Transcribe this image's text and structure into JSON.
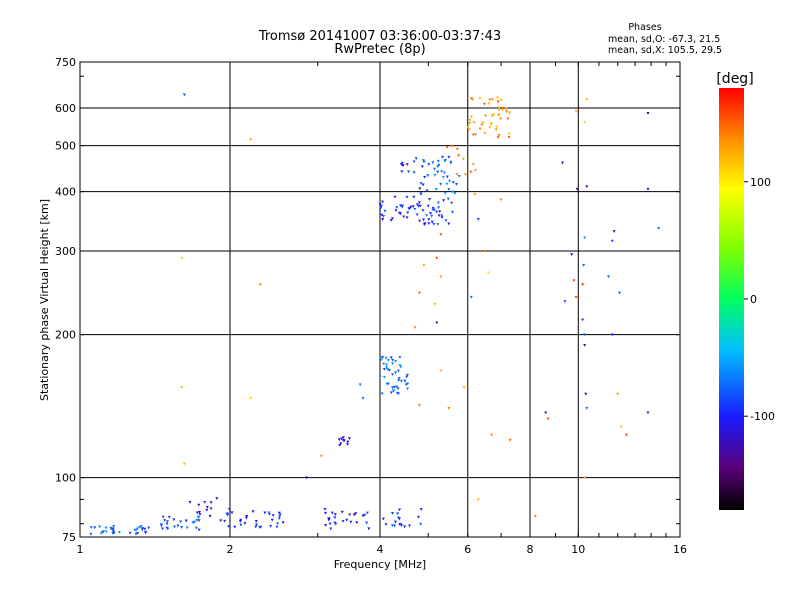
{
  "chart_data": {
    "type": "scatter",
    "title": "Tromsø 20141007 03:36:00-03:37:43",
    "subtitle": "RwPretec (8p)",
    "stats": {
      "heading": "Phases",
      "line1": "mean, sd,O: -67.3, 21.5",
      "line2": "mean, sd,X: 105.5, 29.5"
    },
    "xlabel": "Frequency [MHz]",
    "ylabel": "Stationary phase Virtual Height [km]",
    "xscale": "log",
    "yscale": "log",
    "xlim": [
      1,
      16
    ],
    "ylim": [
      75,
      750
    ],
    "x_ticks": [
      {
        "value": 1,
        "label": "1"
      },
      {
        "value": 2,
        "label": "2"
      },
      {
        "value": 4,
        "label": "4"
      },
      {
        "value": 6,
        "label": "6"
      },
      {
        "value": 8,
        "label": "8"
      },
      {
        "value": 10,
        "label": "10"
      },
      {
        "value": 16,
        "label": "16"
      }
    ],
    "x_grid": [
      2,
      4,
      6,
      8,
      10
    ],
    "y_ticks": [
      {
        "value": 75,
        "label": "75"
      },
      {
        "value": 100,
        "label": "100"
      },
      {
        "value": 200,
        "label": "200"
      },
      {
        "value": 300,
        "label": "300"
      },
      {
        "value": 400,
        "label": "400"
      },
      {
        "value": 500,
        "label": "500"
      },
      {
        "value": 600,
        "label": "600"
      },
      {
        "value": 750,
        "label": "750"
      }
    ],
    "y_grid": [
      100,
      200,
      300,
      400,
      500,
      600
    ],
    "grid": true,
    "colorbar": {
      "label": "[deg]",
      "range": [
        -180,
        180
      ],
      "ticks": [
        {
          "value": 100,
          "label": "100"
        },
        {
          "value": 0,
          "label": "0"
        },
        {
          "value": -100,
          "label": "-100"
        }
      ]
    },
    "clusters": [
      {
        "name": "",
        "x_range": [
          1.05,
          1.2
        ],
        "y_range": [
          76,
          79
        ],
        "phase": -75,
        "count": 18,
        "seed": 1
      },
      {
        "name": "",
        "x_range": [
          1.25,
          1.4
        ],
        "y_range": [
          76,
          79
        ],
        "phase": -75,
        "count": 14,
        "seed": 2
      },
      {
        "name": "",
        "x_range": [
          1.45,
          1.75
        ],
        "y_range": [
          77,
          83
        ],
        "phase": -85,
        "count": 26,
        "seed": 3
      },
      {
        "name": "",
        "x_range": [
          1.65,
          1.9
        ],
        "y_range": [
          83,
          91
        ],
        "phase": -115,
        "count": 12,
        "seed": 4
      },
      {
        "name": "",
        "x_range": [
          1.9,
          2.6
        ],
        "y_range": [
          78,
          86
        ],
        "phase": -95,
        "count": 34,
        "seed": 5
      },
      {
        "name": "",
        "x_range": [
          3.1,
          3.8
        ],
        "y_range": [
          78,
          86
        ],
        "phase": -100,
        "count": 26,
        "seed": 6
      },
      {
        "name": "",
        "x_range": [
          4.0,
          4.9
        ],
        "y_range": [
          78,
          86
        ],
        "phase": -90,
        "count": 18,
        "seed": 7
      },
      {
        "name": "",
        "x_range": [
          3.3,
          3.5
        ],
        "y_range": [
          117,
          122
        ],
        "phase": -115,
        "count": 10,
        "seed": 8
      },
      {
        "name": "",
        "x_range": [
          4.0,
          4.55
        ],
        "y_range": [
          150,
          180
        ],
        "phase": -70,
        "count": 44,
        "seed": 9
      },
      {
        "name": "",
        "x_range": [
          4.0,
          5.6
        ],
        "y_range": [
          340,
          390
        ],
        "phase": -90,
        "count": 64,
        "seed": 10
      },
      {
        "name": "",
        "x_range": [
          4.8,
          5.8
        ],
        "y_range": [
          390,
          480
        ],
        "phase": -72,
        "count": 34,
        "seed": 11
      },
      {
        "name": "",
        "x_range": [
          4.3,
          5.0
        ],
        "y_range": [
          400,
          470
        ],
        "phase": -95,
        "count": 16,
        "seed": 12
      },
      {
        "name": "",
        "x_range": [
          6.0,
          7.3
        ],
        "y_range": [
          520,
          640
        ],
        "phase": 135,
        "count": 44,
        "seed": 13
      },
      {
        "name": "",
        "x_range": [
          5.4,
          6.3
        ],
        "y_range": [
          430,
          500
        ],
        "phase": 140,
        "count": 10,
        "seed": 14
      }
    ],
    "points": [
      {
        "x": 1.62,
        "y": 640,
        "phase": -80
      },
      {
        "x": 2.2,
        "y": 515,
        "phase": 130
      },
      {
        "x": 1.6,
        "y": 290,
        "phase": 110
      },
      {
        "x": 2.3,
        "y": 255,
        "phase": 140
      },
      {
        "x": 1.6,
        "y": 155,
        "phase": 40
      },
      {
        "x": 2.2,
        "y": 147,
        "phase": 110
      },
      {
        "x": 1.62,
        "y": 107,
        "phase": 120
      },
      {
        "x": 2.85,
        "y": 100,
        "phase": -130
      },
      {
        "x": 3.05,
        "y": 111,
        "phase": 130
      },
      {
        "x": 3.65,
        "y": 157,
        "phase": -70
      },
      {
        "x": 3.7,
        "y": 147,
        "phase": -70
      },
      {
        "x": 4.7,
        "y": 207,
        "phase": 140
      },
      {
        "x": 4.8,
        "y": 245,
        "phase": 150
      },
      {
        "x": 4.9,
        "y": 280,
        "phase": 120
      },
      {
        "x": 5.2,
        "y": 290,
        "phase": 160
      },
      {
        "x": 5.3,
        "y": 265,
        "phase": 130
      },
      {
        "x": 5.15,
        "y": 232,
        "phase": 120
      },
      {
        "x": 5.3,
        "y": 168,
        "phase": 120
      },
      {
        "x": 5.5,
        "y": 140,
        "phase": 140
      },
      {
        "x": 5.9,
        "y": 155,
        "phase": 120
      },
      {
        "x": 4.8,
        "y": 142,
        "phase": 140
      },
      {
        "x": 5.2,
        "y": 212,
        "phase": -140
      },
      {
        "x": 5.3,
        "y": 325,
        "phase": 150
      },
      {
        "x": 6.3,
        "y": 350,
        "phase": -90
      },
      {
        "x": 6.1,
        "y": 240,
        "phase": -70
      },
      {
        "x": 6.5,
        "y": 300,
        "phase": 140
      },
      {
        "x": 6.6,
        "y": 270,
        "phase": 110
      },
      {
        "x": 6.7,
        "y": 123,
        "phase": 140
      },
      {
        "x": 7.3,
        "y": 120,
        "phase": 150
      },
      {
        "x": 6.3,
        "y": 90,
        "phase": 120
      },
      {
        "x": 7.0,
        "y": 385,
        "phase": 140
      },
      {
        "x": 6.2,
        "y": 395,
        "phase": 130
      },
      {
        "x": 8.2,
        "y": 83,
        "phase": 140
      },
      {
        "x": 8.6,
        "y": 137,
        "phase": -130
      },
      {
        "x": 8.7,
        "y": 133,
        "phase": 160
      },
      {
        "x": 9.3,
        "y": 460,
        "phase": -130
      },
      {
        "x": 9.7,
        "y": 295,
        "phase": -130
      },
      {
        "x": 9.8,
        "y": 260,
        "phase": 160
      },
      {
        "x": 9.95,
        "y": 405,
        "phase": -140
      },
      {
        "x": 9.4,
        "y": 235,
        "phase": -90
      },
      {
        "x": 9.9,
        "y": 240,
        "phase": 160
      },
      {
        "x": 10.2,
        "y": 255,
        "phase": 170
      },
      {
        "x": 10.25,
        "y": 280,
        "phase": -70
      },
      {
        "x": 10.3,
        "y": 320,
        "phase": -60
      },
      {
        "x": 10.2,
        "y": 215,
        "phase": -90
      },
      {
        "x": 10.3,
        "y": 200,
        "phase": -80
      },
      {
        "x": 10.3,
        "y": 190,
        "phase": -110
      },
      {
        "x": 10.35,
        "y": 150,
        "phase": -140
      },
      {
        "x": 10.4,
        "y": 140,
        "phase": -70
      },
      {
        "x": 10.3,
        "y": 100,
        "phase": 120
      },
      {
        "x": 10.4,
        "y": 410,
        "phase": -140
      },
      {
        "x": 10.3,
        "y": 560,
        "phase": 60
      },
      {
        "x": 10.4,
        "y": 625,
        "phase": 120
      },
      {
        "x": 9.9,
        "y": 590,
        "phase": 120
      },
      {
        "x": 11.8,
        "y": 330,
        "phase": -110
      },
      {
        "x": 11.7,
        "y": 315,
        "phase": -90
      },
      {
        "x": 11.5,
        "y": 265,
        "phase": -70
      },
      {
        "x": 12.1,
        "y": 245,
        "phase": -80
      },
      {
        "x": 11.7,
        "y": 200,
        "phase": -90
      },
      {
        "x": 12.0,
        "y": 150,
        "phase": 130
      },
      {
        "x": 12.2,
        "y": 128,
        "phase": 110
      },
      {
        "x": 12.5,
        "y": 123,
        "phase": 160
      },
      {
        "x": 13.8,
        "y": 585,
        "phase": -150
      },
      {
        "x": 13.8,
        "y": 405,
        "phase": -110
      },
      {
        "x": 14.5,
        "y": 335,
        "phase": -70
      },
      {
        "x": 13.8,
        "y": 137,
        "phase": -110
      }
    ]
  }
}
